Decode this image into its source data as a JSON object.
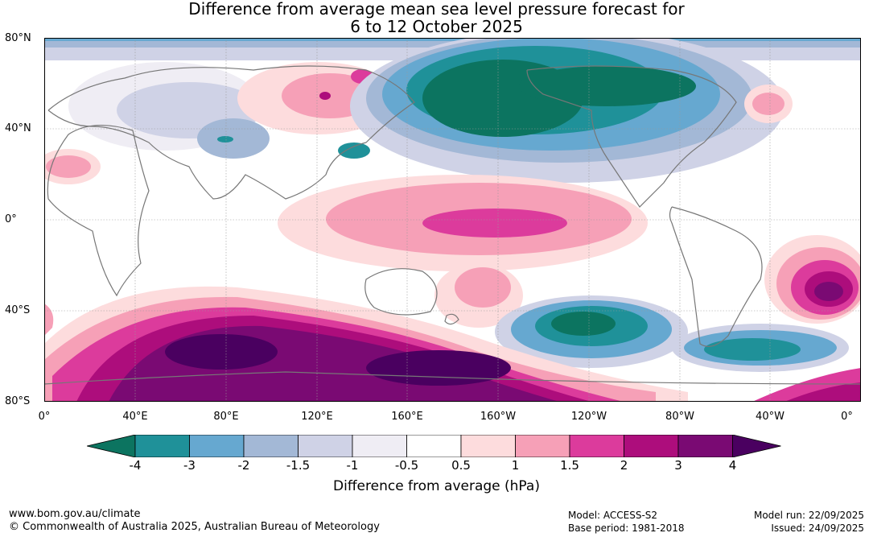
{
  "title": {
    "line1": "Difference from average mean sea level pressure forecast for",
    "line2": "6 to 12 October 2025"
  },
  "map": {
    "lat_labels": [
      "80°N",
      "40°N",
      "0°",
      "40°S",
      "80°S"
    ],
    "lon_labels": [
      "0°",
      "40°E",
      "80°E",
      "120°E",
      "160°E",
      "160°W",
      "120°W",
      "80°W",
      "40°W",
      "0°"
    ],
    "gridlines": true
  },
  "colorbar": {
    "title": "Difference from average (hPa)",
    "ticks": [
      "-4",
      "-3",
      "-2",
      "-1.5",
      "-1",
      "-0.5",
      "0.5",
      "1",
      "1.5",
      "2",
      "3",
      "4"
    ],
    "colors": [
      "#0c7460",
      "#1f9199",
      "#66a8d0",
      "#a3b8d6",
      "#cfd2e6",
      "#efedf4",
      "#ffffff",
      "#fddcdd",
      "#f6a0b7",
      "#dc3b9c",
      "#ad0d7c",
      "#7a0a73",
      "#4a0060"
    ]
  },
  "footer": {
    "website": "www.bom.gov.au/climate",
    "copyright": "© Commonwealth of Australia 2025, Australian Bureau of Meteorology",
    "model": "Model: ACCESS-S2",
    "base_period": "Base period: 1981-2018",
    "model_run": "Model run: 22/09/2025",
    "issued": "Issued: 24/09/2025"
  }
}
